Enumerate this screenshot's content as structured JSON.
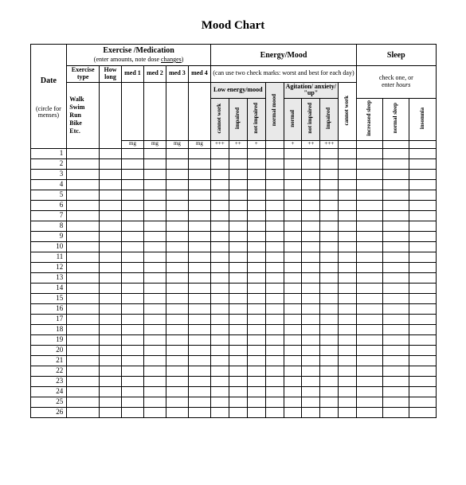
{
  "title": "Mood Chart",
  "sections": {
    "date": {
      "label": "Date",
      "sub": "(circle for menses)"
    },
    "exercise": {
      "label": "Exercise /Medication",
      "note": "(enter amounts, note dose changes)",
      "cols": {
        "type": "Exercise type",
        "howlong": "How long",
        "med1": "med 1",
        "med2": "med 2",
        "med3": "med 3",
        "med4": "med 4"
      },
      "examples": "Walk\nSwim\nRun\nBike\nEtc.",
      "mg": "mg"
    },
    "energy": {
      "label": "Energy/Mood",
      "note": "(can use two check marks: worst and best for each day)",
      "low": "Low energy/mood",
      "agit": "Agitation/ anxiety/ \"up\"",
      "cols": {
        "c1": "cannot work",
        "c2": "impaired",
        "c3": "not impaired",
        "c4": "normal mood",
        "c5": "normal",
        "c6": "not impaired",
        "c7": "impaired",
        "c8": "cannot work"
      },
      "marks": {
        "m1": "+++",
        "m2": "++",
        "m3": "+",
        "m5": "+",
        "m6": "++",
        "m7": "+++"
      }
    },
    "sleep": {
      "label": "Sleep",
      "note": "check one, or enter hours",
      "cols": {
        "s1": "increased sleep",
        "s2": "normal sleep",
        "s3": "insomnia"
      }
    }
  },
  "rows": 26,
  "style": {
    "background": "#ffffff",
    "border_color": "#000000",
    "shade_color": "#e9e9e9",
    "title_fontsize": 15,
    "cell_fontsize": 8
  }
}
